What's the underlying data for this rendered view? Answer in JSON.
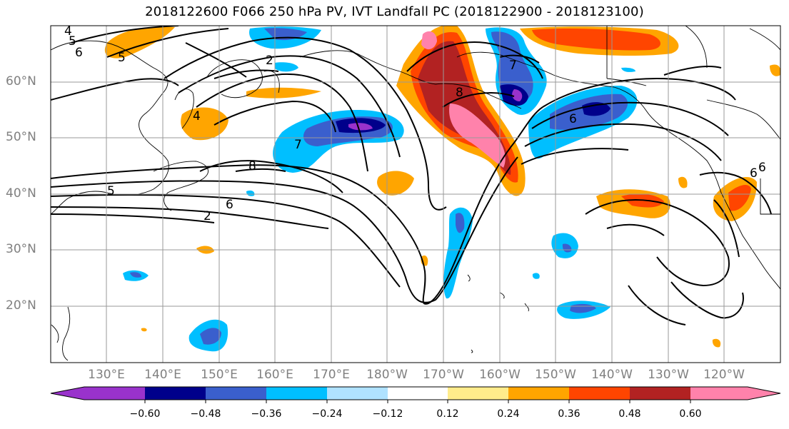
{
  "title": "2018122600 F066 250 hPa PV, IVT Landfall PC (2018122900 - 2018123100)",
  "lat_labels": [
    "60°N",
    "50°N",
    "40°N",
    "30°N",
    "20°N"
  ],
  "lon_labels": [
    "130°E",
    "140°E",
    "150°E",
    "160°E",
    "170°E",
    "180°W",
    "170°W",
    "160°W",
    "150°W",
    "140°W",
    "130°W",
    "120°W"
  ],
  "contour_labels": [
    "4",
    "5",
    "6",
    "2",
    "4",
    "7",
    "8",
    "5",
    "6",
    "2",
    "7",
    "8",
    "6",
    "6",
    "5",
    "6"
  ],
  "colorbar": {
    "ticks": [
      "−0.60",
      "−0.48",
      "−0.36",
      "−0.24",
      "−0.12",
      "0.12",
      "0.24",
      "0.36",
      "0.48",
      "0.60"
    ],
    "colors": [
      "#9932cc",
      "#00008b",
      "#3a5fcd",
      "#00bfff",
      "#b0e2ff",
      "#ffffff",
      "#ffec8b",
      "#ffa500",
      "#ff4500",
      "#b22222",
      "#ff82ab"
    ]
  },
  "colors": {
    "neg_strong": "#3a5fcd",
    "neg_mid": "#00bfff",
    "neg_weak": "#b0e2ff",
    "neg_extreme": "#00008b",
    "pos_weak": "#ffec8b",
    "pos_mid": "#ffa500",
    "pos_strong": "#ff4500",
    "pos_extreme": "#b22222",
    "pos_max": "#ff82ab"
  }
}
